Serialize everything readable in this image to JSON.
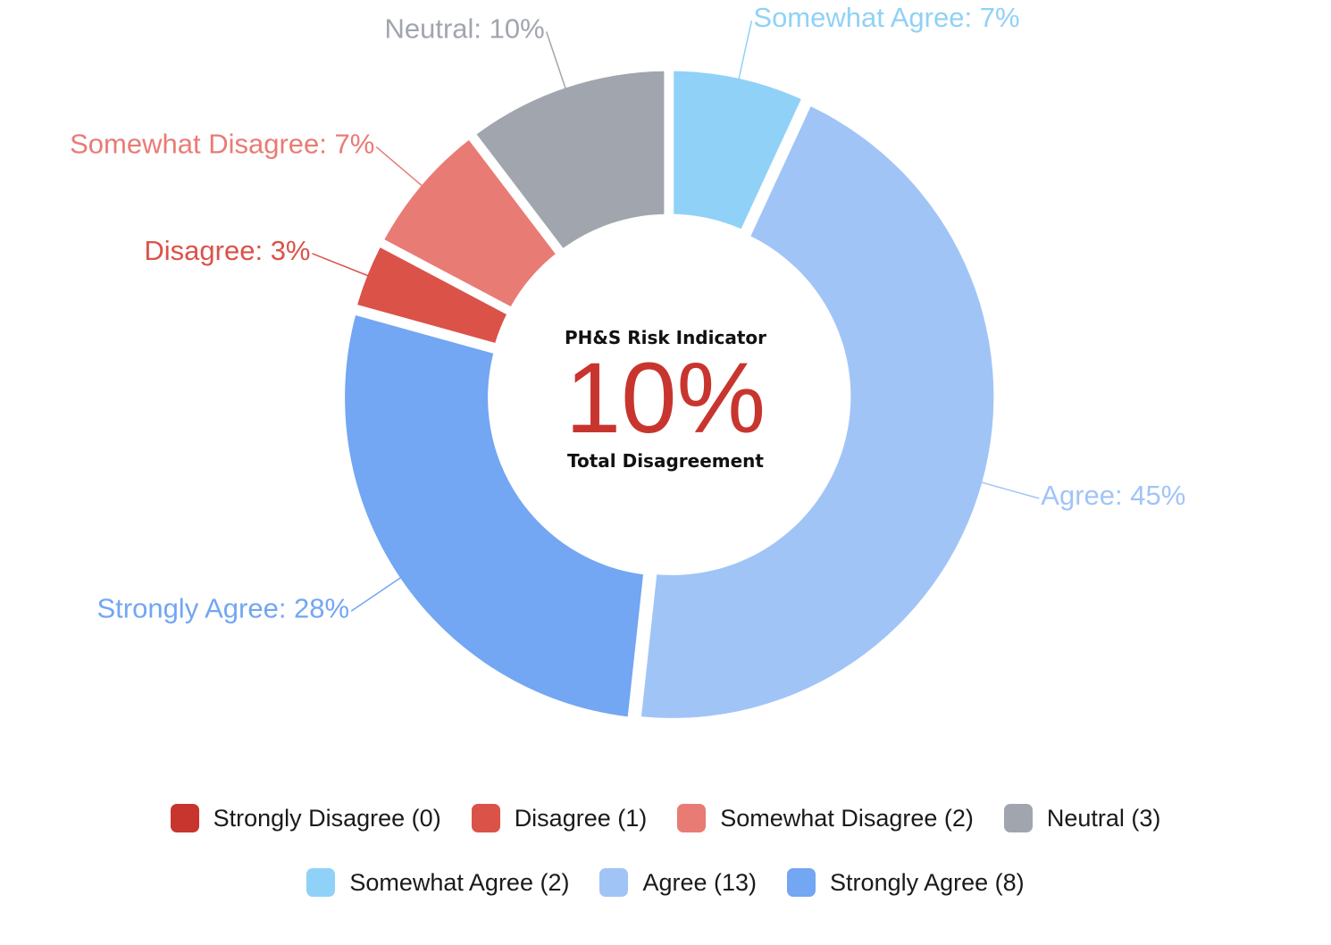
{
  "center": {
    "title": "PH&S Risk Indicator",
    "value": "10%",
    "subtitle": "Total Disagreement",
    "value_color": "#c8352e"
  },
  "chart_data": {
    "type": "pie",
    "donut": true,
    "categories": [
      "Strongly Disagree",
      "Disagree",
      "Somewhat Disagree",
      "Neutral",
      "Somewhat Agree",
      "Agree",
      "Strongly Agree"
    ],
    "counts": [
      0,
      1,
      2,
      3,
      2,
      13,
      8
    ],
    "percentages": [
      0,
      3,
      7,
      10,
      7,
      45,
      28
    ],
    "colors": [
      "#c8352e",
      "#db5249",
      "#e97b75",
      "#a1a5ae",
      "#90d1f7",
      "#a1c4f7",
      "#73a6f3"
    ],
    "slice_labels": [
      "",
      "Disagree: 3%",
      "Somewhat Disagree: 7%",
      "Neutral: 10%",
      "Somewhat Agree: 7%",
      "Agree: 45%",
      "Strongly Agree: 28%"
    ],
    "legend_placement": "bottom"
  },
  "legend": {
    "rows": [
      [
        {
          "label": "Strongly Disagree (0)",
          "color": "#c8352e"
        },
        {
          "label": "Disagree (1)",
          "color": "#db5249"
        },
        {
          "label": "Somewhat Disagree (2)",
          "color": "#e97b75"
        },
        {
          "label": "Neutral (3)",
          "color": "#a1a5ae"
        }
      ],
      [
        {
          "label": "Somewhat Agree (2)",
          "color": "#90d1f7"
        },
        {
          "label": "Agree (13)",
          "color": "#a1c4f7"
        },
        {
          "label": "Strongly Agree (8)",
          "color": "#73a6f3"
        }
      ]
    ]
  }
}
